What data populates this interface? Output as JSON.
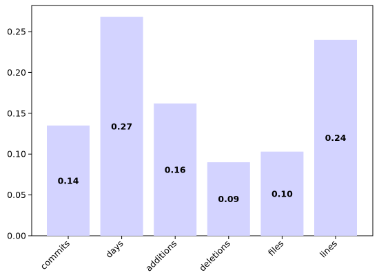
{
  "chart_data": {
    "type": "bar",
    "categories": [
      "commits",
      "days",
      "additions",
      "deletions",
      "files",
      "lines"
    ],
    "values": [
      0.135,
      0.268,
      0.162,
      0.09,
      0.103,
      0.24
    ],
    "data_labels": [
      "0.14",
      "0.27",
      "0.16",
      "0.09",
      "0.10",
      "0.24"
    ],
    "y_ticks": [
      0.0,
      0.05,
      0.1,
      0.15,
      0.2,
      0.25
    ],
    "y_tick_labels": [
      "0.00",
      "0.05",
      "0.10",
      "0.15",
      "0.20",
      "0.25"
    ],
    "ylim": [
      0,
      0.282
    ],
    "bar_color": "#d3d3ff",
    "grid": false,
    "x_tick_rotation": "45 degrees"
  }
}
